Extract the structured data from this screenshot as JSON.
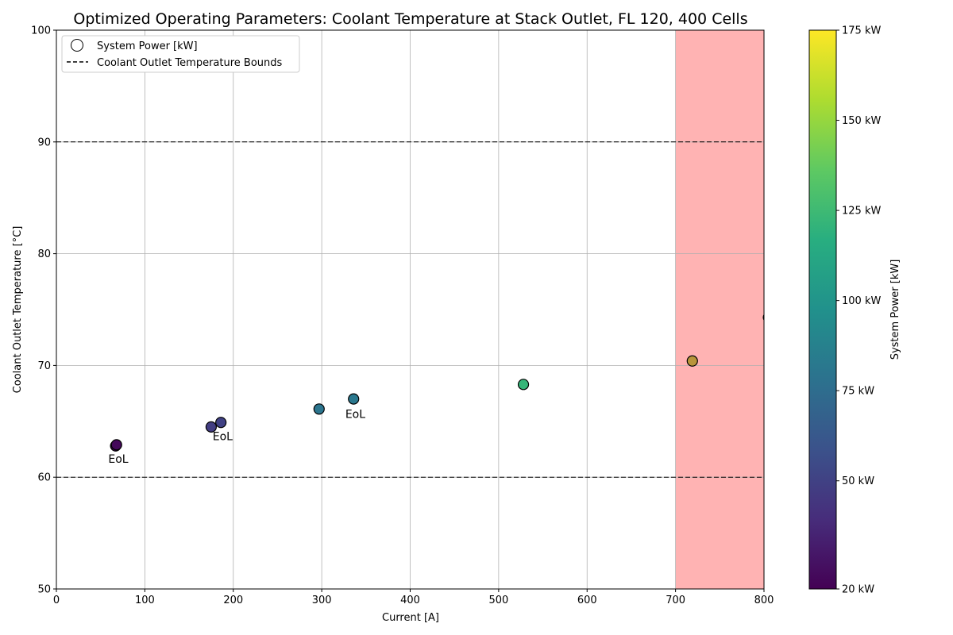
{
  "chart_data": {
    "type": "scatter",
    "title": "Optimized Operating Parameters: Coolant Temperature at Stack Outlet, FL 120, 400 Cells",
    "xlabel": "Current [A]",
    "ylabel": "Coolant Outlet Temperature [°C]",
    "xlim": [
      0,
      800
    ],
    "ylim": [
      50,
      100
    ],
    "x_ticks": [
      0,
      100,
      200,
      300,
      400,
      500,
      600,
      700,
      800
    ],
    "y_ticks": [
      50,
      60,
      70,
      80,
      90,
      100
    ],
    "grid": true,
    "legend_position": "top-left",
    "legend": {
      "points_label": "System Power [kW]",
      "bounds_label": "Coolant Outlet Temperature Bounds"
    },
    "bounds": [
      60,
      90
    ],
    "shaded_region": {
      "x_range": [
        700,
        800
      ],
      "color": "#ffb3b3"
    },
    "points": [
      {
        "x": 67,
        "y": 62.8,
        "power": 22
      },
      {
        "x": 68,
        "y": 62.9,
        "power": 23
      },
      {
        "x": 175,
        "y": 64.5,
        "power": 48
      },
      {
        "x": 186,
        "y": 64.9,
        "power": 50
      },
      {
        "x": 297,
        "y": 66.1,
        "power": 80
      },
      {
        "x": 336,
        "y": 67.0,
        "power": 82
      },
      {
        "x": 528,
        "y": 68.3,
        "power": 122
      },
      {
        "x": 719,
        "y": 70.4,
        "power": 156,
        "color": "#b8953a"
      },
      {
        "x": 805,
        "y": 74.3,
        "power": 165,
        "color": "#c89a5a"
      }
    ],
    "annotations": [
      {
        "text": "EoL",
        "x": 70,
        "y": 61.3
      },
      {
        "text": "EoL",
        "x": 188,
        "y": 63.3
      },
      {
        "text": "EoL",
        "x": 338,
        "y": 65.3
      }
    ],
    "colorbar": {
      "label": "System Power [kW]",
      "min": 20,
      "max": 175,
      "ticks": [
        "20 kW",
        "50 kW",
        "75 kW",
        "100 kW",
        "125 kW",
        "150 kW",
        "175 kW"
      ],
      "tick_values": [
        20,
        50,
        75,
        100,
        125,
        150,
        175
      ],
      "colormap": "viridis"
    }
  }
}
